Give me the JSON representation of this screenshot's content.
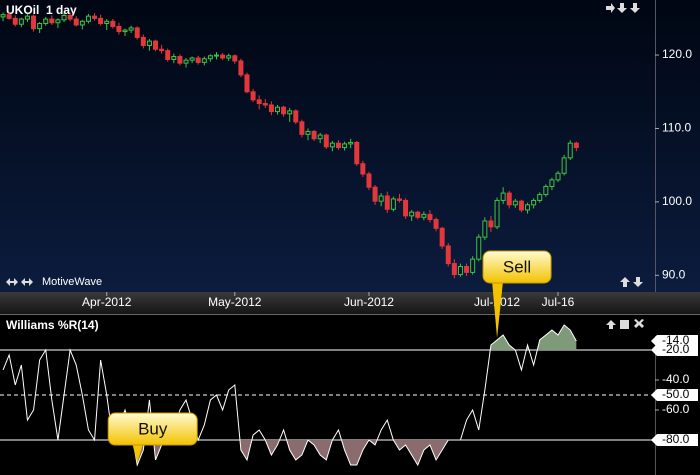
{
  "header": {
    "symbol_title": "UKOil  1 day",
    "brand": "MotiveWave"
  },
  "chart_data": [
    {
      "type": "candlestick",
      "title": "UKOil  1 day",
      "up_color": "#3fc43f",
      "down_color": "#e2383c",
      "xlim": [
        -0.5,
        106.9
      ],
      "ylim": [
        88.0,
        127.5
      ],
      "yticks": [
        {
          "value": 90,
          "label": "90.0"
        },
        {
          "value": 100,
          "label": "100.0"
        },
        {
          "value": 110,
          "label": "110.0"
        },
        {
          "value": 120,
          "label": "120.0"
        }
      ],
      "xticks": [
        {
          "value": 17,
          "label": "Apr-2012"
        },
        {
          "value": 38,
          "label": "May-2012"
        },
        {
          "value": 60,
          "label": "Jun-2012"
        },
        {
          "value": 81,
          "label": "Jul-2012"
        },
        {
          "value": 91,
          "label": "Jul-16"
        }
      ],
      "candles": [
        [
          125.2,
          125.8,
          124.6,
          125.5
        ],
        [
          125.5,
          125.9,
          124.8,
          125.0
        ],
        [
          125.0,
          125.4,
          123.9,
          124.2
        ],
        [
          124.2,
          125.1,
          123.8,
          124.9
        ],
        [
          124.9,
          125.6,
          124.5,
          125.3
        ],
        [
          125.3,
          125.5,
          123.2,
          123.6
        ],
        [
          123.6,
          124.5,
          123.0,
          124.3
        ],
        [
          124.3,
          125.2,
          124.0,
          124.9
        ],
        [
          124.9,
          125.4,
          124.1,
          124.4
        ],
        [
          124.4,
          125.0,
          123.7,
          124.8
        ],
        [
          124.8,
          125.7,
          124.5,
          125.4
        ],
        [
          125.4,
          125.8,
          124.6,
          124.9
        ],
        [
          124.9,
          125.3,
          123.9,
          124.1
        ],
        [
          124.1,
          124.8,
          123.5,
          124.6
        ],
        [
          124.6,
          125.6,
          124.3,
          125.3
        ],
        [
          125.3,
          125.7,
          124.7,
          125.0
        ],
        [
          125.0,
          125.5,
          124.0,
          124.3
        ],
        [
          124.3,
          124.9,
          123.4,
          124.6
        ],
        [
          124.6,
          124.9,
          123.6,
          123.9
        ],
        [
          123.9,
          124.4,
          122.8,
          123.2
        ],
        [
          123.2,
          123.6,
          122.6,
          123.4
        ],
        [
          123.4,
          124.0,
          123.0,
          123.7
        ],
        [
          123.7,
          123.9,
          122.1,
          122.4
        ],
        [
          122.4,
          122.8,
          120.9,
          121.3
        ],
        [
          121.3,
          122.2,
          120.6,
          121.9
        ],
        [
          121.9,
          122.1,
          120.5,
          120.8
        ],
        [
          120.8,
          121.4,
          120.2,
          120.6
        ],
        [
          120.6,
          120.9,
          119.1,
          119.4
        ],
        [
          119.4,
          120.2,
          118.9,
          119.8
        ],
        [
          119.8,
          120.1,
          118.6,
          118.9
        ],
        [
          118.9,
          119.6,
          118.3,
          119.3
        ],
        [
          119.3,
          119.8,
          118.9,
          119.6
        ],
        [
          119.6,
          119.9,
          118.7,
          119.0
        ],
        [
          119.0,
          119.8,
          118.6,
          119.5
        ],
        [
          119.5,
          120.1,
          119.1,
          119.9
        ],
        [
          119.9,
          120.4,
          119.4,
          120.0
        ],
        [
          120.0,
          120.3,
          119.3,
          119.6
        ],
        [
          119.6,
          120.2,
          119.2,
          119.9
        ],
        [
          119.9,
          120.1,
          118.8,
          119.2
        ],
        [
          119.2,
          119.5,
          117.0,
          117.3
        ],
        [
          117.3,
          117.6,
          114.8,
          115.0
        ],
        [
          115.0,
          115.4,
          113.6,
          113.9
        ],
        [
          113.9,
          114.5,
          112.6,
          113.4
        ],
        [
          113.4,
          114.0,
          112.8,
          113.2
        ],
        [
          113.2,
          113.7,
          111.8,
          112.3
        ],
        [
          112.3,
          113.2,
          111.9,
          112.9
        ],
        [
          112.9,
          113.1,
          111.6,
          112.0
        ],
        [
          112.0,
          112.8,
          110.9,
          112.4
        ],
        [
          112.4,
          112.6,
          110.6,
          110.9
        ],
        [
          110.9,
          111.2,
          108.8,
          109.2
        ],
        [
          109.2,
          110.0,
          108.4,
          109.6
        ],
        [
          109.6,
          109.8,
          108.3,
          108.6
        ],
        [
          108.6,
          109.4,
          108.0,
          109.1
        ],
        [
          109.1,
          109.3,
          107.2,
          107.5
        ],
        [
          107.5,
          108.3,
          106.9,
          108.0
        ],
        [
          108.0,
          108.4,
          107.1,
          107.4
        ],
        [
          107.4,
          108.2,
          107.0,
          107.9
        ],
        [
          107.9,
          108.6,
          107.3,
          108.1
        ],
        [
          108.1,
          108.3,
          104.9,
          105.2
        ],
        [
          105.2,
          105.6,
          103.4,
          103.8
        ],
        [
          103.8,
          104.1,
          101.6,
          102.0
        ],
        [
          102.0,
          102.3,
          99.6,
          100.1
        ],
        [
          100.1,
          101.2,
          99.4,
          100.8
        ],
        [
          100.8,
          101.4,
          98.5,
          99.0
        ],
        [
          99.0,
          100.7,
          98.7,
          100.4
        ],
        [
          100.4,
          101.1,
          99.9,
          100.2
        ],
        [
          100.2,
          100.5,
          97.7,
          98.1
        ],
        [
          98.1,
          98.9,
          97.4,
          98.6
        ],
        [
          98.6,
          98.8,
          97.6,
          97.9
        ],
        [
          97.9,
          98.7,
          97.5,
          98.3
        ],
        [
          98.3,
          98.9,
          97.2,
          97.6
        ],
        [
          97.6,
          97.9,
          96.0,
          96.4
        ],
        [
          96.4,
          96.6,
          93.6,
          94.0
        ],
        [
          94.0,
          94.4,
          91.2,
          91.6
        ],
        [
          91.6,
          92.2,
          89.6,
          90.1
        ],
        [
          90.1,
          91.6,
          89.8,
          91.2
        ],
        [
          91.2,
          91.6,
          89.9,
          90.4
        ],
        [
          90.4,
          92.6,
          90.1,
          92.2
        ],
        [
          92.2,
          95.6,
          91.9,
          95.2
        ],
        [
          95.2,
          97.9,
          94.8,
          97.4
        ],
        [
          97.4,
          98.1,
          95.9,
          96.6
        ],
        [
          96.6,
          100.6,
          96.3,
          100.2
        ],
        [
          100.2,
          102.0,
          99.7,
          101.2
        ],
        [
          101.2,
          101.5,
          99.1,
          99.6
        ],
        [
          99.6,
          100.4,
          99.2,
          100.1
        ],
        [
          100.1,
          100.3,
          98.6,
          98.9
        ],
        [
          98.9,
          99.9,
          98.4,
          99.6
        ],
        [
          99.6,
          100.5,
          99.1,
          100.2
        ],
        [
          100.2,
          101.3,
          99.9,
          101.0
        ],
        [
          101.0,
          102.4,
          100.7,
          102.1
        ],
        [
          102.1,
          103.3,
          101.6,
          103.0
        ],
        [
          103.0,
          104.2,
          102.7,
          103.9
        ],
        [
          103.9,
          106.4,
          103.6,
          106.0
        ],
        [
          106.0,
          108.4,
          105.7,
          108.0
        ],
        [
          108.0,
          108.2,
          106.9,
          107.4
        ]
      ]
    },
    {
      "type": "line",
      "title": "Williams %R(14)",
      "color": "#ffffff",
      "overbought_color": "#7f9a78",
      "oversold_color": "#8a6b6e",
      "xlim": [
        -0.5,
        106.9
      ],
      "ylim": [
        -100,
        0
      ],
      "yticks": [
        {
          "value": -14,
          "label": "-14.0"
        },
        {
          "value": -20,
          "label": "-20.0"
        },
        {
          "value": -40,
          "label": "-40.0"
        },
        {
          "value": -50,
          "label": "-50.0"
        },
        {
          "value": -60,
          "label": "-60.0"
        },
        {
          "value": -80,
          "label": "-80.0"
        }
      ],
      "levels": [
        {
          "value": -20,
          "dashed": false
        },
        {
          "value": -50,
          "dashed": true
        },
        {
          "value": -80,
          "dashed": false
        }
      ],
      "annotations": [
        {
          "text": "Buy",
          "at": 22
        },
        {
          "text": "Sell",
          "at": 81
        }
      ],
      "values": [
        -33.3,
        -23.3,
        -43.3,
        -30,
        -66.7,
        -60,
        -26.7,
        -20,
        -53.3,
        -80,
        -50,
        -20,
        -30,
        -50,
        -73.3,
        -80,
        -26.7,
        -50,
        -80,
        -70,
        -60,
        -73.3,
        -96.7,
        -86.7,
        -53.3,
        -93.3,
        -83.3,
        -66.7,
        -73.3,
        -60,
        -53.3,
        -66.7,
        -80,
        -70,
        -53.3,
        -50,
        -60,
        -46.7,
        -43.3,
        -86.7,
        -93.3,
        -76.7,
        -73.3,
        -80,
        -90,
        -83.3,
        -73.3,
        -86.7,
        -93.3,
        -90,
        -80,
        -83.3,
        -90,
        -93.3,
        -80,
        -73.3,
        -86.7,
        -96.7,
        -96.7,
        -86.7,
        -80,
        -83.3,
        -73.3,
        -66.7,
        -80,
        -86.7,
        -83.3,
        -90,
        -96.7,
        -86.7,
        -83.3,
        -93.3,
        -86.7,
        -80,
        -80,
        -80,
        -66.7,
        -60,
        -73.3,
        -46.7,
        -16.7,
        -13.3,
        -10,
        -16.7,
        -20,
        -33.3,
        -16.7,
        -30,
        -13.3,
        -10,
        -6.7,
        -10,
        -3.3,
        -6.7,
        -14
      ]
    }
  ]
}
